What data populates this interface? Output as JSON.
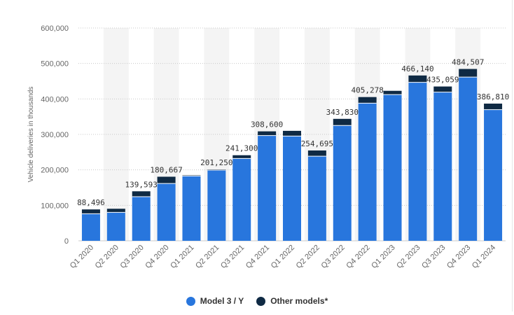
{
  "chart_data": {
    "type": "bar",
    "stacked": true,
    "categories": [
      "Q1 2020",
      "Q2 2020",
      "Q3 2020",
      "Q4 2020",
      "Q1 2021",
      "Q2 2021",
      "Q3 2021",
      "Q4 2021",
      "Q1 2022",
      "Q2 2022",
      "Q3 2022",
      "Q4 2022",
      "Q1 2023",
      "Q2 2023",
      "Q3 2023",
      "Q4 2023",
      "Q1 2024"
    ],
    "series": [
      {
        "name": "Model 3 / Y",
        "color": "#2876dd",
        "values": [
          76266,
          80277,
          124318,
          161701,
          182847,
          199360,
          232102,
          296884,
          295324,
          238533,
          325158,
          388131,
          412180,
          446915,
          419074,
          461538,
          369783
        ]
      },
      {
        "name": "Other models*",
        "color": "#0f2a44",
        "values": [
          12230,
          10089,
          15275,
          18966,
          2020,
          1890,
          9198,
          11716,
          14724,
          16162,
          18672,
          17147,
          10695,
          19225,
          15985,
          22969,
          17027
        ]
      }
    ],
    "totals": [
      88496,
      90366,
      139593,
      180667,
      184867,
      201250,
      241300,
      308600,
      310048,
      254695,
      343830,
      405278,
      422875,
      466140,
      435059,
      484507,
      386810
    ],
    "data_labels": [
      "88,496",
      "",
      "139,593",
      "180,667",
      "",
      "201,250",
      "241,300",
      "308,600",
      "",
      "254,695",
      "343,830",
      "405,278",
      "",
      "466,140",
      "435,059",
      "484,507",
      "386,810"
    ],
    "y_ticks": [
      0,
      100000,
      200000,
      300000,
      400000,
      500000,
      600000
    ],
    "y_tick_labels": [
      "0",
      "100,000",
      "200,000",
      "300,000",
      "400,000",
      "500,000",
      "600,000"
    ],
    "ylim": [
      0,
      600000
    ],
    "ylabel": "Vehicle deliveries in thousands",
    "xlabel": "",
    "grid": true,
    "legend_position": "bottom-center"
  },
  "legend": {
    "items": [
      {
        "label": "Model 3 / Y",
        "color": "#2876dd"
      },
      {
        "label": "Other models*",
        "color": "#0f2a44"
      }
    ]
  }
}
